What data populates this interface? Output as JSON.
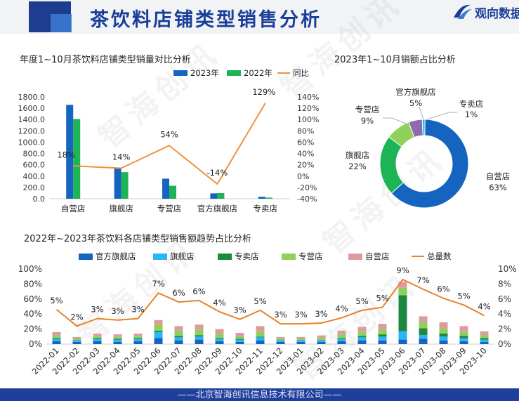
{
  "header": {
    "title": "茶饮料店铺类型销售分析",
    "brand": "观向数据"
  },
  "footer": {
    "text": "——北京智海创讯信息技术有限公司——"
  },
  "watermark": "智海创讯",
  "colors": {
    "dark_blue": "#1565c0",
    "green": "#1db455",
    "orange": "#f0913a",
    "sky": "#29b6f6",
    "dark_green": "#1b8a3e",
    "light_green": "#8fd05d",
    "pink": "#de9b9f",
    "purple": "#8e6ab0"
  },
  "chart_data": [
    {
      "type": "bar",
      "title": "年度1~10月茶饮料店铺类型销量对比分析",
      "categories": [
        "自营店",
        "旗舰店",
        "专营店",
        "官方旗舰店",
        "专卖店"
      ],
      "series": [
        {
          "name": "2023年",
          "values": [
            1660,
            545,
            355,
            95,
            35
          ]
        },
        {
          "name": "2022年",
          "values": [
            1410,
            470,
            230,
            100,
            20
          ]
        }
      ],
      "line": {
        "name": "同比",
        "values": [
          18,
          14,
          54,
          -14,
          129
        ],
        "labels": [
          "18%",
          "14%",
          "54%",
          "-14%",
          "129%"
        ]
      },
      "ylim": [
        0,
        1800
      ],
      "yticks": [
        "0.0",
        "200.0",
        "400.0",
        "600.0",
        "800.0",
        "1000.0",
        "1200.0",
        "1400.0",
        "1600.0",
        "1800.0"
      ],
      "y2lim": [
        -40,
        140
      ],
      "y2ticks": [
        "-40%",
        "-20%",
        "0%",
        "20%",
        "40%",
        "60%",
        "80%",
        "100%",
        "120%",
        "140%"
      ],
      "legend": "top-right"
    },
    {
      "type": "pie",
      "title": "2023年1~10月销额占比分析",
      "labels": [
        "自营店",
        "旗舰店",
        "专营店",
        "官方旗舰店",
        "专卖店"
      ],
      "values": [
        63,
        22,
        9,
        5,
        1
      ],
      "pct_labels": [
        "63%",
        "22%",
        "9%",
        "5%",
        "1%"
      ]
    },
    {
      "type": "bar",
      "stacked": true,
      "title": "2022年~2023年茶饮料各店铺类型销售额趋势占比分析",
      "categories": [
        "2022-01",
        "2022-02",
        "2022-03",
        "2022-04",
        "2022-05",
        "2022-06",
        "2022-07",
        "2022-08",
        "2022-09",
        "2022-10",
        "2022-11",
        "2022-12",
        "2023-01",
        "2023-02",
        "2023-03",
        "2023-04",
        "2023-05",
        "2023-06",
        "2023-07",
        "2023-08",
        "2023-09",
        "2023-10"
      ],
      "series": [
        {
          "name": "官方旗舰店",
          "values": [
            4,
            3,
            4,
            3,
            4,
            8,
            5,
            6,
            4,
            3,
            5,
            3,
            3,
            3,
            4,
            5,
            5,
            6,
            7,
            5,
            4,
            3
          ]
        },
        {
          "name": "旗舰店",
          "values": [
            3,
            2,
            3,
            3,
            3,
            8,
            4,
            4,
            3,
            3,
            4,
            2,
            2,
            2,
            3,
            4,
            5,
            11,
            5,
            5,
            4,
            3
          ]
        },
        {
          "name": "专卖店",
          "values": [
            1,
            0.5,
            1,
            1,
            1,
            2,
            2,
            2,
            1,
            1,
            1,
            0.5,
            0.5,
            0.5,
            1,
            2,
            3,
            48,
            9,
            4,
            3,
            2
          ]
        },
        {
          "name": "专营店",
          "values": [
            4,
            2,
            3,
            3,
            3,
            8,
            7,
            7,
            6,
            4,
            7,
            2,
            2,
            3,
            5,
            6,
            7,
            10,
            8,
            7,
            6,
            4
          ]
        },
        {
          "name": "自营店",
          "values": [
            4,
            2,
            3,
            3,
            3,
            6,
            6,
            7,
            6,
            4,
            7,
            2,
            2,
            3,
            5,
            6,
            7,
            8,
            8,
            8,
            7,
            5
          ]
        }
      ],
      "line": {
        "name": "总量数",
        "values": [
          4.6,
          2.4,
          3.4,
          3.2,
          3.4,
          6.8,
          5.6,
          5.8,
          4.3,
          3.3,
          4.5,
          2.7,
          2.7,
          2.8,
          3.5,
          4.5,
          4.9,
          8.6,
          7.3,
          6.1,
          5.2,
          3.8
        ],
        "labels": [
          "5%",
          "2%",
          "3%",
          "3%",
          "3%",
          "7%",
          "6%",
          "6%",
          "4%",
          "3%",
          "5%",
          "3%",
          "3%",
          "3%",
          "4%",
          "5%",
          "5%",
          "9%",
          "7%",
          "6%",
          "5%",
          "4%"
        ]
      },
      "ylim": [
        0,
        100
      ],
      "yticks": [
        "0%",
        "20%",
        "40%",
        "60%",
        "80%",
        "100%"
      ],
      "y2lim": [
        0,
        10
      ],
      "y2ticks": [
        "0%",
        "2%",
        "4%",
        "6%",
        "8%",
        "10%"
      ],
      "legend": "top"
    }
  ]
}
